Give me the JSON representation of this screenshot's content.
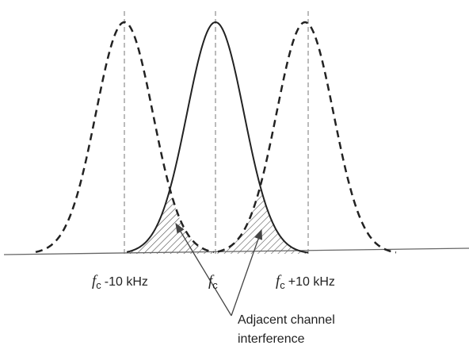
{
  "labels": [
    {
      "symbol": "f",
      "subscript": "c",
      "suffix": "-10 kHz"
    },
    {
      "symbol": "f",
      "subscript": "c"
    },
    {
      "symbol": "f",
      "subscript": "c",
      "suffix": "+10 kHz"
    }
  ],
  "annotation": {
    "lines": [
      "Adjacent channel",
      "interference"
    ]
  }
}
